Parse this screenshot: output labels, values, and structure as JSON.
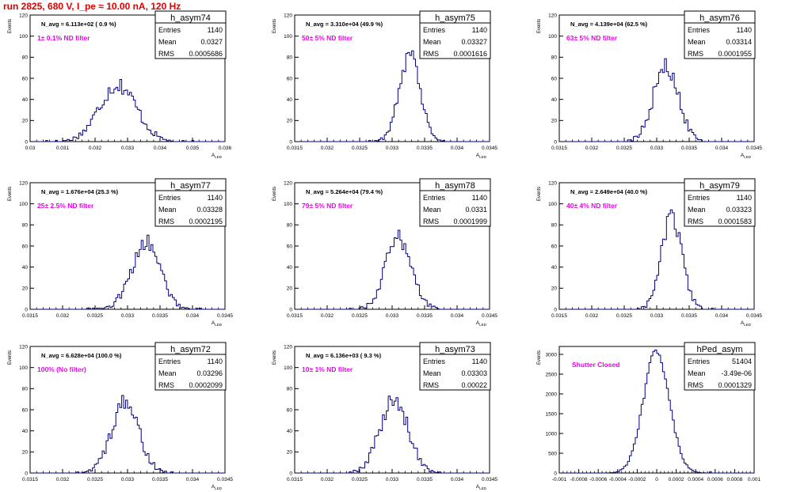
{
  "header": {
    "title": "run 2825,   680 V, I_pe ≈ 10.00 nA, 120 Hz"
  },
  "colors": {
    "title": "#e00000",
    "annotation": "#ee00ee",
    "histogram": "#000080",
    "axis": "#000000"
  },
  "chart_data": [
    {
      "type": "bar",
      "name": "h_asym74",
      "navg": "N_avg = 6.113e+02 ( 0.9 %)",
      "note": "1± 0.1% ND filter",
      "stats": {
        "entries": "1140",
        "mean": "0.0327",
        "rms": "0.0005686"
      },
      "xlabel": "A_LED",
      "ylabel": "Events",
      "xlim": [
        0.03,
        0.036
      ],
      "ylim": [
        0,
        120
      ],
      "xticks": [
        "0.03",
        "0.031",
        "0.032",
        "0.033",
        "0.034",
        "0.035",
        "0.036"
      ],
      "yticks": [
        "0",
        "20",
        "40",
        "60",
        "80",
        "100",
        "120"
      ],
      "shape": {
        "center": 0.0327,
        "sigma": 0.00057,
        "peak": 54
      }
    },
    {
      "type": "bar",
      "name": "h_asym75",
      "navg": "N_avg = 3.310e+04 (49.9 %)",
      "note": "50± 5% ND filter",
      "stats": {
        "entries": "1140",
        "mean": "0.03327",
        "rms": "0.0001616"
      },
      "xlabel": "A_LED",
      "ylabel": "Events",
      "xlim": [
        0.0315,
        0.0345
      ],
      "ylim": [
        0,
        120
      ],
      "xticks": [
        "0.0315",
        "0.032",
        "0.0325",
        "0.033",
        "0.0335",
        "0.034",
        "0.0345"
      ],
      "yticks": [
        "0",
        "20",
        "40",
        "60",
        "80",
        "100",
        "120"
      ],
      "shape": {
        "center": 0.03327,
        "sigma": 0.000162,
        "peak": 84
      }
    },
    {
      "type": "bar",
      "name": "h_asym76",
      "navg": "N_avg = 4.139e+04 (62.5 %)",
      "note": "63± 5% ND filter",
      "stats": {
        "entries": "1140",
        "mean": "0.03314",
        "rms": "0.0001955"
      },
      "xlabel": "A_LED",
      "ylabel": "Events",
      "xlim": [
        0.0315,
        0.0345
      ],
      "ylim": [
        0,
        120
      ],
      "xticks": [
        "0.0315",
        "0.032",
        "0.0325",
        "0.033",
        "0.0335",
        "0.034",
        "0.0345"
      ],
      "yticks": [
        "0",
        "20",
        "40",
        "60",
        "80",
        "100",
        "120"
      ],
      "shape": {
        "center": 0.03314,
        "sigma": 0.000196,
        "peak": 70
      }
    },
    {
      "type": "bar",
      "name": "h_asym77",
      "navg": "N_avg = 1.676e+04 (25.3 %)",
      "note": "25± 2.5% ND filter",
      "stats": {
        "entries": "1140",
        "mean": "0.03328",
        "rms": "0.0002195"
      },
      "xlabel": "A_LED",
      "ylabel": "Events",
      "xlim": [
        0.0315,
        0.0345
      ],
      "ylim": [
        0,
        120
      ],
      "xticks": [
        "0.0315",
        "0.032",
        "0.0325",
        "0.033",
        "0.0335",
        "0.034",
        "0.0345"
      ],
      "yticks": [
        "0",
        "20",
        "40",
        "60",
        "80",
        "100",
        "120"
      ],
      "shape": {
        "center": 0.03328,
        "sigma": 0.00022,
        "peak": 63
      }
    },
    {
      "type": "bar",
      "name": "h_asym78",
      "navg": "N_avg = 5.264e+04 (79.4 %)",
      "note": "79± 5% ND filter",
      "stats": {
        "entries": "1140",
        "mean": "0.0331",
        "rms": "0.0001999"
      },
      "xlabel": "A_LED",
      "ylabel": "Events",
      "xlim": [
        0.0315,
        0.0345
      ],
      "ylim": [
        0,
        120
      ],
      "xticks": [
        "0.0315",
        "0.032",
        "0.0325",
        "0.033",
        "0.0335",
        "0.034",
        "0.0345"
      ],
      "yticks": [
        "0",
        "20",
        "40",
        "60",
        "80",
        "100",
        "120"
      ],
      "shape": {
        "center": 0.0331,
        "sigma": 0.0002,
        "peak": 68
      }
    },
    {
      "type": "bar",
      "name": "h_asym79",
      "navg": "N_avg = 2.649e+04 (40.0 %)",
      "note": "40± 4% ND filter",
      "stats": {
        "entries": "1140",
        "mean": "0.03323",
        "rms": "0.0001583"
      },
      "xlabel": "A_LED",
      "ylabel": "Events",
      "xlim": [
        0.0315,
        0.0345
      ],
      "ylim": [
        0,
        120
      ],
      "xticks": [
        "0.0315",
        "0.032",
        "0.0325",
        "0.033",
        "0.0335",
        "0.034",
        "0.0345"
      ],
      "yticks": [
        "0",
        "20",
        "40",
        "60",
        "80",
        "100",
        "120"
      ],
      "shape": {
        "center": 0.03323,
        "sigma": 0.000158,
        "peak": 87
      }
    },
    {
      "type": "bar",
      "name": "h_asym72",
      "navg": "N_avg = 6.628e+04 (100.0 %)",
      "note": "100% (No filter)",
      "stats": {
        "entries": "1140",
        "mean": "0.03296",
        "rms": "0.0002099"
      },
      "xlabel": "A_LED",
      "ylabel": "Events",
      "xlim": [
        0.0315,
        0.0345
      ],
      "ylim": [
        0,
        120
      ],
      "xticks": [
        "0.0315",
        "0.032",
        "0.0325",
        "0.033",
        "0.0335",
        "0.034",
        "0.0345"
      ],
      "yticks": [
        "0",
        "20",
        "40",
        "60",
        "80",
        "100",
        "120"
      ],
      "shape": {
        "center": 0.03296,
        "sigma": 0.00021,
        "peak": 67
      }
    },
    {
      "type": "bar",
      "name": "h_asym73",
      "navg": "N_avg = 6.136e+03 ( 9.3 %)",
      "note": "10± 1% ND filter",
      "stats": {
        "entries": "1140",
        "mean": "0.03303",
        "rms": "0.00022"
      },
      "xlabel": "A_LED",
      "ylabel": "Events",
      "xlim": [
        0.0315,
        0.0345
      ],
      "ylim": [
        0,
        120
      ],
      "xticks": [
        "0.0315",
        "0.032",
        "0.0325",
        "0.033",
        "0.0335",
        "0.034",
        "0.0345"
      ],
      "yticks": [
        "0",
        "20",
        "40",
        "60",
        "80",
        "100",
        "120"
      ],
      "shape": {
        "center": 0.03303,
        "sigma": 0.00022,
        "peak": 68
      }
    },
    {
      "type": "bar",
      "name": "hPed_asym",
      "navg": "",
      "note": "Shutter Closed",
      "stats": {
        "entries": "51404",
        "mean": "-3.49e-06",
        "rms": "0.0001329"
      },
      "xlabel": "",
      "ylabel": "Events",
      "xlim": [
        -0.001,
        0.001
      ],
      "ylim": [
        0,
        3200
      ],
      "xticks": [
        "-0.001",
        "-0.0008",
        "-0.0006",
        "-0.0004",
        "-0.0002",
        "0",
        "0.0002",
        "0.0004",
        "0.0006",
        "0.0008",
        "0.001"
      ],
      "yticks": [
        "0",
        "500",
        "1000",
        "1500",
        "2000",
        "2500",
        "3000"
      ],
      "shape": {
        "center": -3.5e-06,
        "sigma": 0.000133,
        "peak": 3080
      }
    }
  ]
}
